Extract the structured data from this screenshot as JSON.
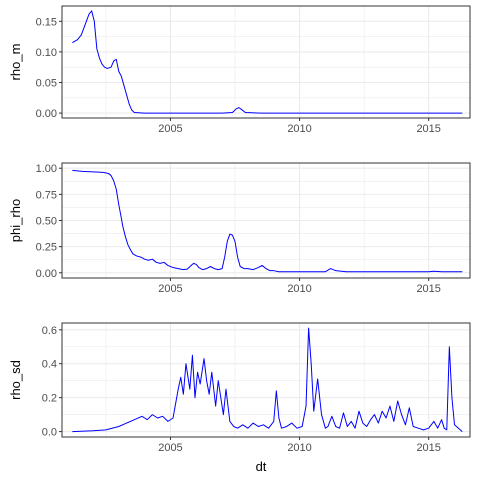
{
  "colors": {
    "line": "#0000ff",
    "grid": "#ebebeb",
    "panel_border": "#333333"
  },
  "xlabel": "dt",
  "chart_data": [
    {
      "type": "line",
      "ylabel": "rho_m",
      "xlim": [
        2000.8,
        2016.6
      ],
      "ylim": [
        -0.008,
        0.175
      ],
      "x_ticks": [
        2005,
        2010,
        2015
      ],
      "x_tick_labels": [
        "2005",
        "2010",
        "2015"
      ],
      "y_ticks": [
        0,
        0.05,
        0.1,
        0.15
      ],
      "y_tick_labels": [
        "0.00",
        "0.05",
        "0.10",
        "0.15"
      ],
      "grid": true,
      "x": [
        2001.2,
        2001.4,
        2001.55,
        2001.7,
        2001.85,
        2001.95,
        2002.05,
        2002.15,
        2002.25,
        2002.35,
        2002.45,
        2002.55,
        2002.7,
        2002.8,
        2002.9,
        2003.0,
        2003.1,
        2003.2,
        2003.3,
        2003.4,
        2003.5,
        2003.6,
        2004.0,
        2005.0,
        2006.0,
        2007.0,
        2007.4,
        2007.55,
        2007.65,
        2007.75,
        2007.9,
        2008.5,
        2010.0,
        2012.0,
        2014.0,
        2016.3
      ],
      "y": [
        0.115,
        0.12,
        0.128,
        0.145,
        0.162,
        0.167,
        0.15,
        0.105,
        0.09,
        0.08,
        0.075,
        0.073,
        0.075,
        0.085,
        0.088,
        0.068,
        0.06,
        0.045,
        0.03,
        0.015,
        0.005,
        0.001,
        0.0,
        0.0,
        0.0,
        0.0,
        0.001,
        0.007,
        0.009,
        0.006,
        0.001,
        0.0,
        0.0,
        0.0,
        0.0,
        0.0
      ]
    },
    {
      "type": "line",
      "ylabel": "phi_rho",
      "xlim": [
        2000.8,
        2016.6
      ],
      "ylim": [
        -0.05,
        1.05
      ],
      "x_ticks": [
        2005,
        2010,
        2015
      ],
      "x_tick_labels": [
        "2005",
        "2010",
        "2015"
      ],
      "y_ticks": [
        0,
        0.25,
        0.5,
        0.75,
        1.0
      ],
      "y_tick_labels": [
        "0.00",
        "0.25",
        "0.50",
        "0.75",
        "1.00"
      ],
      "grid": true,
      "x": [
        2001.2,
        2001.6,
        2002.0,
        2002.4,
        2002.6,
        2002.7,
        2002.8,
        2002.9,
        2003.0,
        2003.1,
        2003.15,
        2003.25,
        2003.35,
        2003.45,
        2003.55,
        2003.7,
        2003.85,
        2004.0,
        2004.15,
        2004.3,
        2004.45,
        2004.6,
        2004.75,
        2004.9,
        2005.1,
        2005.3,
        2005.5,
        2005.65,
        2005.8,
        2005.9,
        2006.0,
        2006.1,
        2006.25,
        2006.4,
        2006.55,
        2006.7,
        2006.85,
        2007.0,
        2007.1,
        2007.2,
        2007.3,
        2007.4,
        2007.5,
        2007.6,
        2007.7,
        2007.85,
        2008.0,
        2008.2,
        2008.4,
        2008.55,
        2008.7,
        2008.85,
        2009.0,
        2009.2,
        2009.5,
        2010.0,
        2010.5,
        2011.0,
        2011.2,
        2011.4,
        2011.8,
        2012.5,
        2013.0,
        2013.5,
        2014.0,
        2014.5,
        2015.0,
        2015.2,
        2015.5,
        2016.0,
        2016.3
      ],
      "y": [
        0.98,
        0.97,
        0.965,
        0.96,
        0.95,
        0.93,
        0.88,
        0.8,
        0.65,
        0.52,
        0.45,
        0.35,
        0.27,
        0.22,
        0.18,
        0.16,
        0.15,
        0.13,
        0.12,
        0.13,
        0.1,
        0.09,
        0.1,
        0.07,
        0.05,
        0.04,
        0.03,
        0.035,
        0.07,
        0.09,
        0.08,
        0.05,
        0.03,
        0.04,
        0.06,
        0.04,
        0.03,
        0.04,
        0.15,
        0.3,
        0.37,
        0.36,
        0.3,
        0.15,
        0.06,
        0.04,
        0.04,
        0.03,
        0.05,
        0.07,
        0.04,
        0.02,
        0.02,
        0.01,
        0.01,
        0.01,
        0.01,
        0.01,
        0.04,
        0.02,
        0.01,
        0.01,
        0.01,
        0.01,
        0.01,
        0.01,
        0.01,
        0.015,
        0.01,
        0.01,
        0.01
      ]
    },
    {
      "type": "line",
      "ylabel": "rho_sd",
      "xlabel": "dt",
      "xlim": [
        2000.8,
        2016.6
      ],
      "ylim": [
        -0.032,
        0.64
      ],
      "x_ticks": [
        2005,
        2010,
        2015
      ],
      "x_tick_labels": [
        "2005",
        "2010",
        "2015"
      ],
      "y_ticks": [
        0,
        0.2,
        0.4,
        0.6
      ],
      "y_tick_labels": [
        "0.0",
        "0.2",
        "0.4",
        "0.6"
      ],
      "grid": true,
      "x": [
        2001.2,
        2002.0,
        2002.5,
        2003.0,
        2003.3,
        2003.6,
        2003.9,
        2004.0,
        2004.1,
        2004.3,
        2004.5,
        2004.7,
        2004.9,
        2005.1,
        2005.3,
        2005.4,
        2005.5,
        2005.6,
        2005.75,
        2005.85,
        2005.95,
        2006.05,
        2006.15,
        2006.3,
        2006.4,
        2006.5,
        2006.6,
        2006.75,
        2006.85,
        2006.95,
        2007.05,
        2007.15,
        2007.3,
        2007.45,
        2007.6,
        2007.8,
        2008.0,
        2008.2,
        2008.4,
        2008.6,
        2008.8,
        2009.0,
        2009.1,
        2009.2,
        2009.3,
        2009.5,
        2009.7,
        2009.9,
        2010.1,
        2010.25,
        2010.35,
        2010.45,
        2010.55,
        2010.7,
        2010.85,
        2011.0,
        2011.1,
        2011.25,
        2011.4,
        2011.55,
        2011.7,
        2011.85,
        2012.0,
        2012.15,
        2012.3,
        2012.45,
        2012.6,
        2012.75,
        2012.9,
        2013.05,
        2013.2,
        2013.35,
        2013.5,
        2013.65,
        2013.8,
        2013.95,
        2014.1,
        2014.25,
        2014.4,
        2014.6,
        2014.8,
        2015.0,
        2015.2,
        2015.35,
        2015.5,
        2015.6,
        2015.7,
        2015.8,
        2015.9,
        2016.0,
        2016.3
      ],
      "y": [
        0.0,
        0.005,
        0.01,
        0.03,
        0.05,
        0.07,
        0.09,
        0.08,
        0.07,
        0.1,
        0.08,
        0.09,
        0.06,
        0.08,
        0.25,
        0.32,
        0.22,
        0.4,
        0.25,
        0.45,
        0.2,
        0.35,
        0.28,
        0.43,
        0.3,
        0.22,
        0.35,
        0.15,
        0.3,
        0.2,
        0.1,
        0.25,
        0.06,
        0.03,
        0.02,
        0.04,
        0.02,
        0.05,
        0.03,
        0.04,
        0.02,
        0.06,
        0.24,
        0.08,
        0.02,
        0.03,
        0.05,
        0.02,
        0.03,
        0.15,
        0.61,
        0.4,
        0.12,
        0.31,
        0.1,
        0.02,
        0.03,
        0.09,
        0.03,
        0.02,
        0.11,
        0.03,
        0.06,
        0.02,
        0.12,
        0.05,
        0.03,
        0.07,
        0.1,
        0.05,
        0.12,
        0.08,
        0.15,
        0.06,
        0.18,
        0.1,
        0.04,
        0.14,
        0.03,
        0.02,
        0.01,
        0.02,
        0.06,
        0.02,
        0.07,
        0.02,
        0.01,
        0.5,
        0.2,
        0.04,
        0.0
      ]
    }
  ]
}
